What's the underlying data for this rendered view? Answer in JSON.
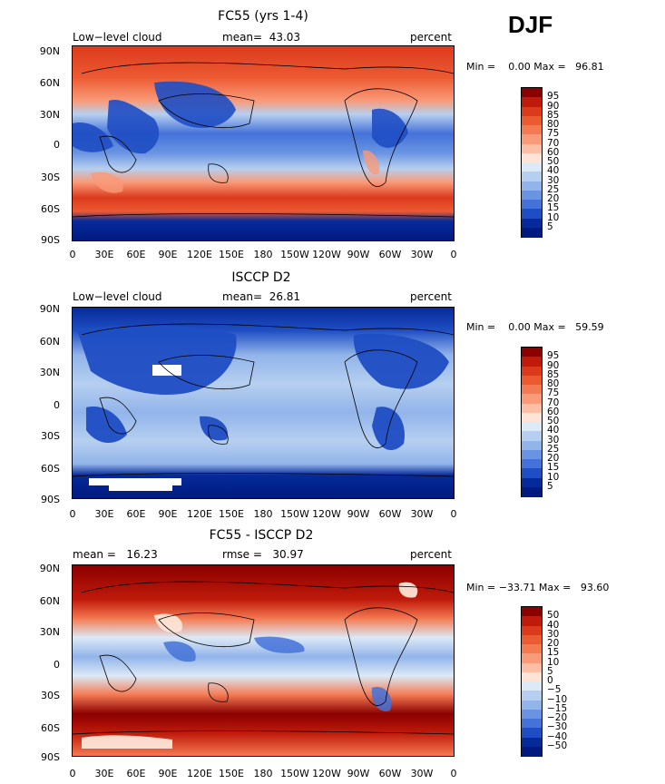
{
  "season": "DJF",
  "lat_ticks": [
    "90N",
    "60N",
    "30N",
    "0",
    "30S",
    "60S",
    "90S"
  ],
  "lon_ticks": [
    "0",
    "30E",
    "60E",
    "90E",
    "120E",
    "150E",
    "180",
    "150W",
    "120W",
    "90W",
    "60W",
    "30W",
    "0"
  ],
  "panels": [
    {
      "title": "FC55 (yrs 1-4)",
      "left_label": "Low−level cloud",
      "center_label": "mean=  43.03",
      "right_label": "percent",
      "minmax": "Min =    0.00 Max =   96.81",
      "colorbar_levels": [
        "95",
        "90",
        "85",
        "80",
        "75",
        "70",
        "60",
        "50",
        "40",
        "30",
        "25",
        "20",
        "15",
        "10",
        "5"
      ],
      "colorbar_colors": [
        "#8b0000",
        "#c01a0a",
        "#dc3a1c",
        "#ec5a32",
        "#f47a52",
        "#f99a78",
        "#fcbea4",
        "#fde4d6",
        "#dce9f6",
        "#b6cff0",
        "#92b4ea",
        "#6a94e2",
        "#4472d8",
        "#1f4ec4",
        "#062a9a",
        "#001a80"
      ]
    },
    {
      "title": "ISCCP D2",
      "left_label": "Low−level cloud",
      "center_label": "mean=  26.81",
      "right_label": "percent",
      "minmax": "Min =    0.00 Max =   59.59",
      "colorbar_levels": [
        "95",
        "90",
        "85",
        "80",
        "75",
        "70",
        "60",
        "50",
        "40",
        "30",
        "25",
        "20",
        "15",
        "10",
        "5"
      ],
      "colorbar_colors": [
        "#8b0000",
        "#c01a0a",
        "#dc3a1c",
        "#ec5a32",
        "#f47a52",
        "#f99a78",
        "#fcbea4",
        "#fde4d6",
        "#dce9f6",
        "#b6cff0",
        "#92b4ea",
        "#6a94e2",
        "#4472d8",
        "#1f4ec4",
        "#062a9a",
        "#001a80"
      ]
    },
    {
      "title": "FC55 - ISCCP D2",
      "left_label": "mean =   16.23",
      "center_label": "rmse =   30.97",
      "right_label": "percent",
      "minmax": "Min = −33.71 Max =   93.60",
      "colorbar_levels": [
        "50",
        "40",
        "30",
        "20",
        "15",
        "10",
        "5",
        "0",
        "−5",
        "−10",
        "−15",
        "−20",
        "−30",
        "−40",
        "−50"
      ],
      "colorbar_colors": [
        "#8b0000",
        "#c01a0a",
        "#dc3a1c",
        "#ec5a32",
        "#f47a52",
        "#f99a78",
        "#fcbea4",
        "#fde4d6",
        "#dce9f6",
        "#b6cff0",
        "#92b4ea",
        "#6a94e2",
        "#4472d8",
        "#1f4ec4",
        "#062a9a",
        "#001a80"
      ]
    }
  ]
}
